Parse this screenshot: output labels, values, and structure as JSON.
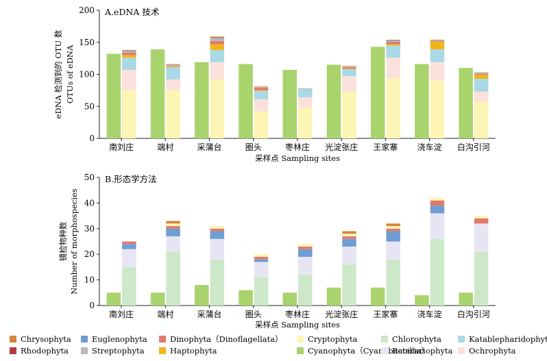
{
  "colors": {
    "Chrysophyta": "#d4873b",
    "Rhodophyta": "#b83b3b",
    "Euglenophyta": "#6e9ed3",
    "Streptophyta": "#b8b8b8",
    "Dinophyta": "#e27a6d",
    "Haptophyta": "#f1b51c",
    "Cryptophyta": "#fcf5b4",
    "Cyanophyta": "#a9d36c",
    "Chlorophyta": "#cce8c8",
    "Bacillariophyta": "#e7e5f3",
    "Katablepharidophyta": "#a9d9e4",
    "Ochrophyta": "#fbe0dc"
  },
  "legend": {
    "items": [
      {
        "key": "Chrysophyta",
        "label": "Chrysophyta"
      },
      {
        "key": "Euglenophyta",
        "label": "Euglenophyta"
      },
      {
        "key": "Dinophyta",
        "label": "Dinophyta（Dinoflagellata）"
      },
      {
        "key": "Cryptophyta",
        "label": "Cryptophyta"
      },
      {
        "key": "Chlorophyta",
        "label": "Chlorophyta"
      },
      {
        "key": "Katablepharidophyta",
        "label": "Katablepharidophyta"
      },
      {
        "key": "Rhodophyta",
        "label": "Rhodophyta"
      },
      {
        "key": "Streptophyta",
        "label": "Streptophyta"
      },
      {
        "key": "Haptophyta",
        "label": "Haptophyta"
      },
      {
        "key": "Cyanophyta",
        "label": "Cyanophyta（Cyanobacteria）"
      },
      {
        "key": "Bacillariophyta",
        "label": "Bacillariophyta"
      },
      {
        "key": "Ochrophyta",
        "label": "Ochrophyta"
      }
    ]
  },
  "chart_data": [
    {
      "type": "bar",
      "title": "A.eDNA 技术",
      "xlabel": "采样点 Sampling sites",
      "ylabel_line1": "eDNA 检测到的 OTU 数",
      "ylabel_line2": "OTUs of eDNA",
      "ylim": [
        0,
        200
      ],
      "yticks": [
        0,
        50,
        100,
        150,
        200
      ],
      "categories": [
        "南刘庄",
        "端村",
        "采蒲台",
        "圈头",
        "枣林庄",
        "光淀张庄",
        "王家寨",
        "浇车淀",
        "白沟引河"
      ],
      "single_series": {
        "key": "Cyanophyta",
        "values": [
          132,
          139,
          119,
          116,
          107,
          115,
          143,
          116,
          110
        ]
      },
      "stack_order": [
        "Cryptophyta",
        "Ochrophyta",
        "Katablepharidophyta",
        "Haptophyta",
        "Dinophyta",
        "Streptophyta",
        "Euglenophyta",
        "Chrysophyta"
      ],
      "stacks": [
        {
          "Cryptophyta": 75,
          "Ochrophyta": 32,
          "Katablepharidophyta": 19,
          "Haptophyta": 4,
          "Dinophyta": 4,
          "Streptophyta": 2,
          "Euglenophyta": 1,
          "Chrysophyta": 1
        },
        {
          "Cryptophyta": 75,
          "Ochrophyta": 17,
          "Katablepharidophyta": 19,
          "Haptophyta": 1,
          "Dinophyta": 1,
          "Streptophyta": 2,
          "Euglenophyta": 0,
          "Chrysophyta": 1
        },
        {
          "Cryptophyta": 92,
          "Ochrophyta": 27,
          "Katablepharidophyta": 19,
          "Haptophyta": 9,
          "Dinophyta": 5,
          "Streptophyta": 4,
          "Euglenophyta": 1,
          "Chrysophyta": 2
        },
        {
          "Cryptophyta": 42,
          "Ochrophyta": 19,
          "Katablepharidophyta": 13,
          "Haptophyta": 1,
          "Dinophyta": 4,
          "Streptophyta": 1,
          "Euglenophyta": 0,
          "Chrysophyta": 1
        },
        {
          "Cryptophyta": 48,
          "Ochrophyta": 16,
          "Katablepharidophyta": 13,
          "Haptophyta": 0,
          "Dinophyta": 0,
          "Streptophyta": 1,
          "Euglenophyta": 0,
          "Chrysophyta": 0
        },
        {
          "Cryptophyta": 73,
          "Ochrophyta": 24,
          "Katablepharidophyta": 11,
          "Haptophyta": 1,
          "Dinophyta": 2,
          "Streptophyta": 1,
          "Euglenophyta": 0,
          "Chrysophyta": 1
        },
        {
          "Cryptophyta": 94,
          "Ochrophyta": 32,
          "Katablepharidophyta": 19,
          "Haptophyta": 2,
          "Dinophyta": 4,
          "Streptophyta": 1,
          "Euglenophyta": 1,
          "Chrysophyta": 1
        },
        {
          "Cryptophyta": 90,
          "Ochrophyta": 29,
          "Katablepharidophyta": 20,
          "Haptophyta": 12,
          "Dinophyta": 1,
          "Streptophyta": 1,
          "Euglenophyta": 0,
          "Chrysophyta": 1
        },
        {
          "Cryptophyta": 57,
          "Ochrophyta": 16,
          "Katablepharidophyta": 20,
          "Haptophyta": 6,
          "Dinophyta": 1,
          "Streptophyta": 2,
          "Euglenophyta": 0,
          "Chrysophyta": 1
        }
      ]
    },
    {
      "type": "bar",
      "title": "B.形态学方法",
      "xlabel": "采样点 Sampling sites",
      "ylabel_line1": "镜检物种数",
      "ylabel_line2": "Number of morphospecies",
      "ylim": [
        0,
        50
      ],
      "yticks": [
        0,
        10,
        20,
        30,
        40,
        50
      ],
      "categories": [
        "南刘庄",
        "端村",
        "采蒲台",
        "圈头",
        "枣林庄",
        "光淀张庄",
        "王家寨",
        "浇车淀",
        "白沟引河"
      ],
      "single_series": {
        "key": "Cyanophyta",
        "values": [
          5,
          5,
          8,
          6,
          5,
          7,
          7,
          4,
          5
        ]
      },
      "stack_order": [
        "Chlorophyta",
        "Bacillariophyta",
        "Euglenophyta",
        "Dinophyta",
        "Cryptophyta",
        "Chrysophyta"
      ],
      "stacks": [
        {
          "Chlorophyta": 15,
          "Bacillariophyta": 7,
          "Euglenophyta": 2,
          "Dinophyta": 1,
          "Cryptophyta": 0,
          "Chrysophyta": 0
        },
        {
          "Chlorophyta": 21,
          "Bacillariophyta": 6,
          "Euglenophyta": 3,
          "Dinophyta": 1,
          "Cryptophyta": 1,
          "Chrysophyta": 1
        },
        {
          "Chlorophyta": 18,
          "Bacillariophyta": 8,
          "Euglenophyta": 3,
          "Dinophyta": 1,
          "Cryptophyta": 1,
          "Chrysophyta": 0
        },
        {
          "Chlorophyta": 11,
          "Bacillariophyta": 6,
          "Euglenophyta": 1,
          "Dinophyta": 1,
          "Cryptophyta": 1,
          "Chrysophyta": 0
        },
        {
          "Chlorophyta": 12,
          "Bacillariophyta": 7,
          "Euglenophyta": 3,
          "Dinophyta": 1,
          "Cryptophyta": 1,
          "Chrysophyta": 0
        },
        {
          "Chlorophyta": 16,
          "Bacillariophyta": 7,
          "Euglenophyta": 3,
          "Dinophyta": 1,
          "Cryptophyta": 1,
          "Chrysophyta": 1
        },
        {
          "Chlorophyta": 18,
          "Bacillariophyta": 7,
          "Euglenophyta": 4,
          "Dinophyta": 1,
          "Cryptophyta": 1,
          "Chrysophyta": 1
        },
        {
          "Chlorophyta": 26,
          "Bacillariophyta": 10,
          "Euglenophyta": 3,
          "Dinophyta": 2,
          "Cryptophyta": 1,
          "Chrysophyta": 0
        },
        {
          "Chlorophyta": 21,
          "Bacillariophyta": 11,
          "Euglenophyta": 0,
          "Dinophyta": 2,
          "Cryptophyta": 1,
          "Chrysophyta": 0
        }
      ]
    }
  ]
}
